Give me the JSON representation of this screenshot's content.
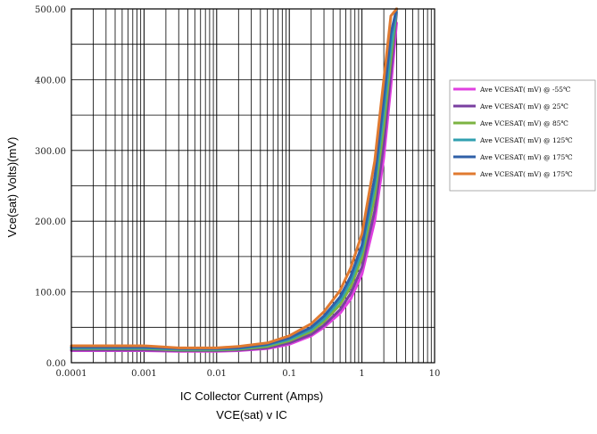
{
  "chart_data": {
    "type": "line",
    "title": "VCE(sat) v IC",
    "xlabel": "IC Collector Current (Amps)",
    "ylabel": "Vce(sat) Volts)(mV)",
    "x_scale": "log",
    "xlim": [
      0.0001,
      10
    ],
    "ylim": [
      0,
      500
    ],
    "grid": true,
    "legend_position": "right",
    "x_ticks": [
      "0.0001",
      "0.001",
      "0.01",
      "0.1",
      "1",
      "10"
    ],
    "y_ticks": [
      "0.00",
      "100.00",
      "200.00",
      "300.00",
      "400.00",
      "500.00"
    ],
    "x": [
      0.0001,
      0.0003,
      0.001,
      0.003,
      0.01,
      0.02,
      0.05,
      0.1,
      0.2,
      0.3,
      0.5,
      0.7,
      1,
      1.5,
      2,
      2.5,
      3
    ],
    "series": [
      {
        "name": "Ave VCESAT( mV) @ -55℃",
        "color": "#e040e0",
        "values": [
          17,
          17,
          17,
          16,
          16,
          17,
          20,
          26,
          38,
          50,
          70,
          90,
          125,
          200,
          290,
          390,
          480
        ]
      },
      {
        "name": "Ave VCESAT( mV) @ 25℃",
        "color": "#7a3fa0",
        "values": [
          18,
          18,
          18,
          17,
          17,
          18,
          21,
          28,
          40,
          53,
          75,
          98,
          135,
          215,
          310,
          410,
          495
        ]
      },
      {
        "name": "Ave VCESAT( mV) @ 85℃",
        "color": "#7cb342",
        "values": [
          20,
          20,
          20,
          18,
          18,
          19,
          23,
          31,
          44,
          58,
          82,
          107,
          148,
          235,
          335,
          430,
          500
        ]
      },
      {
        "name": "Ave VCESAT( mV) @ 125℃",
        "color": "#31a0b0",
        "values": [
          21,
          21,
          21,
          19,
          19,
          20,
          25,
          33,
          47,
          62,
          88,
          115,
          158,
          250,
          355,
          445,
          500
        ]
      },
      {
        "name": "Ave VCESAT( mV) @ 175℃",
        "color": "#3060a8",
        "values": [
          22,
          22,
          22,
          20,
          20,
          21,
          26,
          35,
          50,
          66,
          93,
          122,
          166,
          262,
          372,
          465,
          500
        ]
      },
      {
        "name": "Ave VCESAT( mV) @ 175℃",
        "color": "#e07a30",
        "values": [
          24,
          24,
          24,
          21,
          21,
          23,
          28,
          38,
          55,
          72,
          102,
          134,
          182,
          285,
          400,
          490,
          500
        ]
      }
    ]
  }
}
